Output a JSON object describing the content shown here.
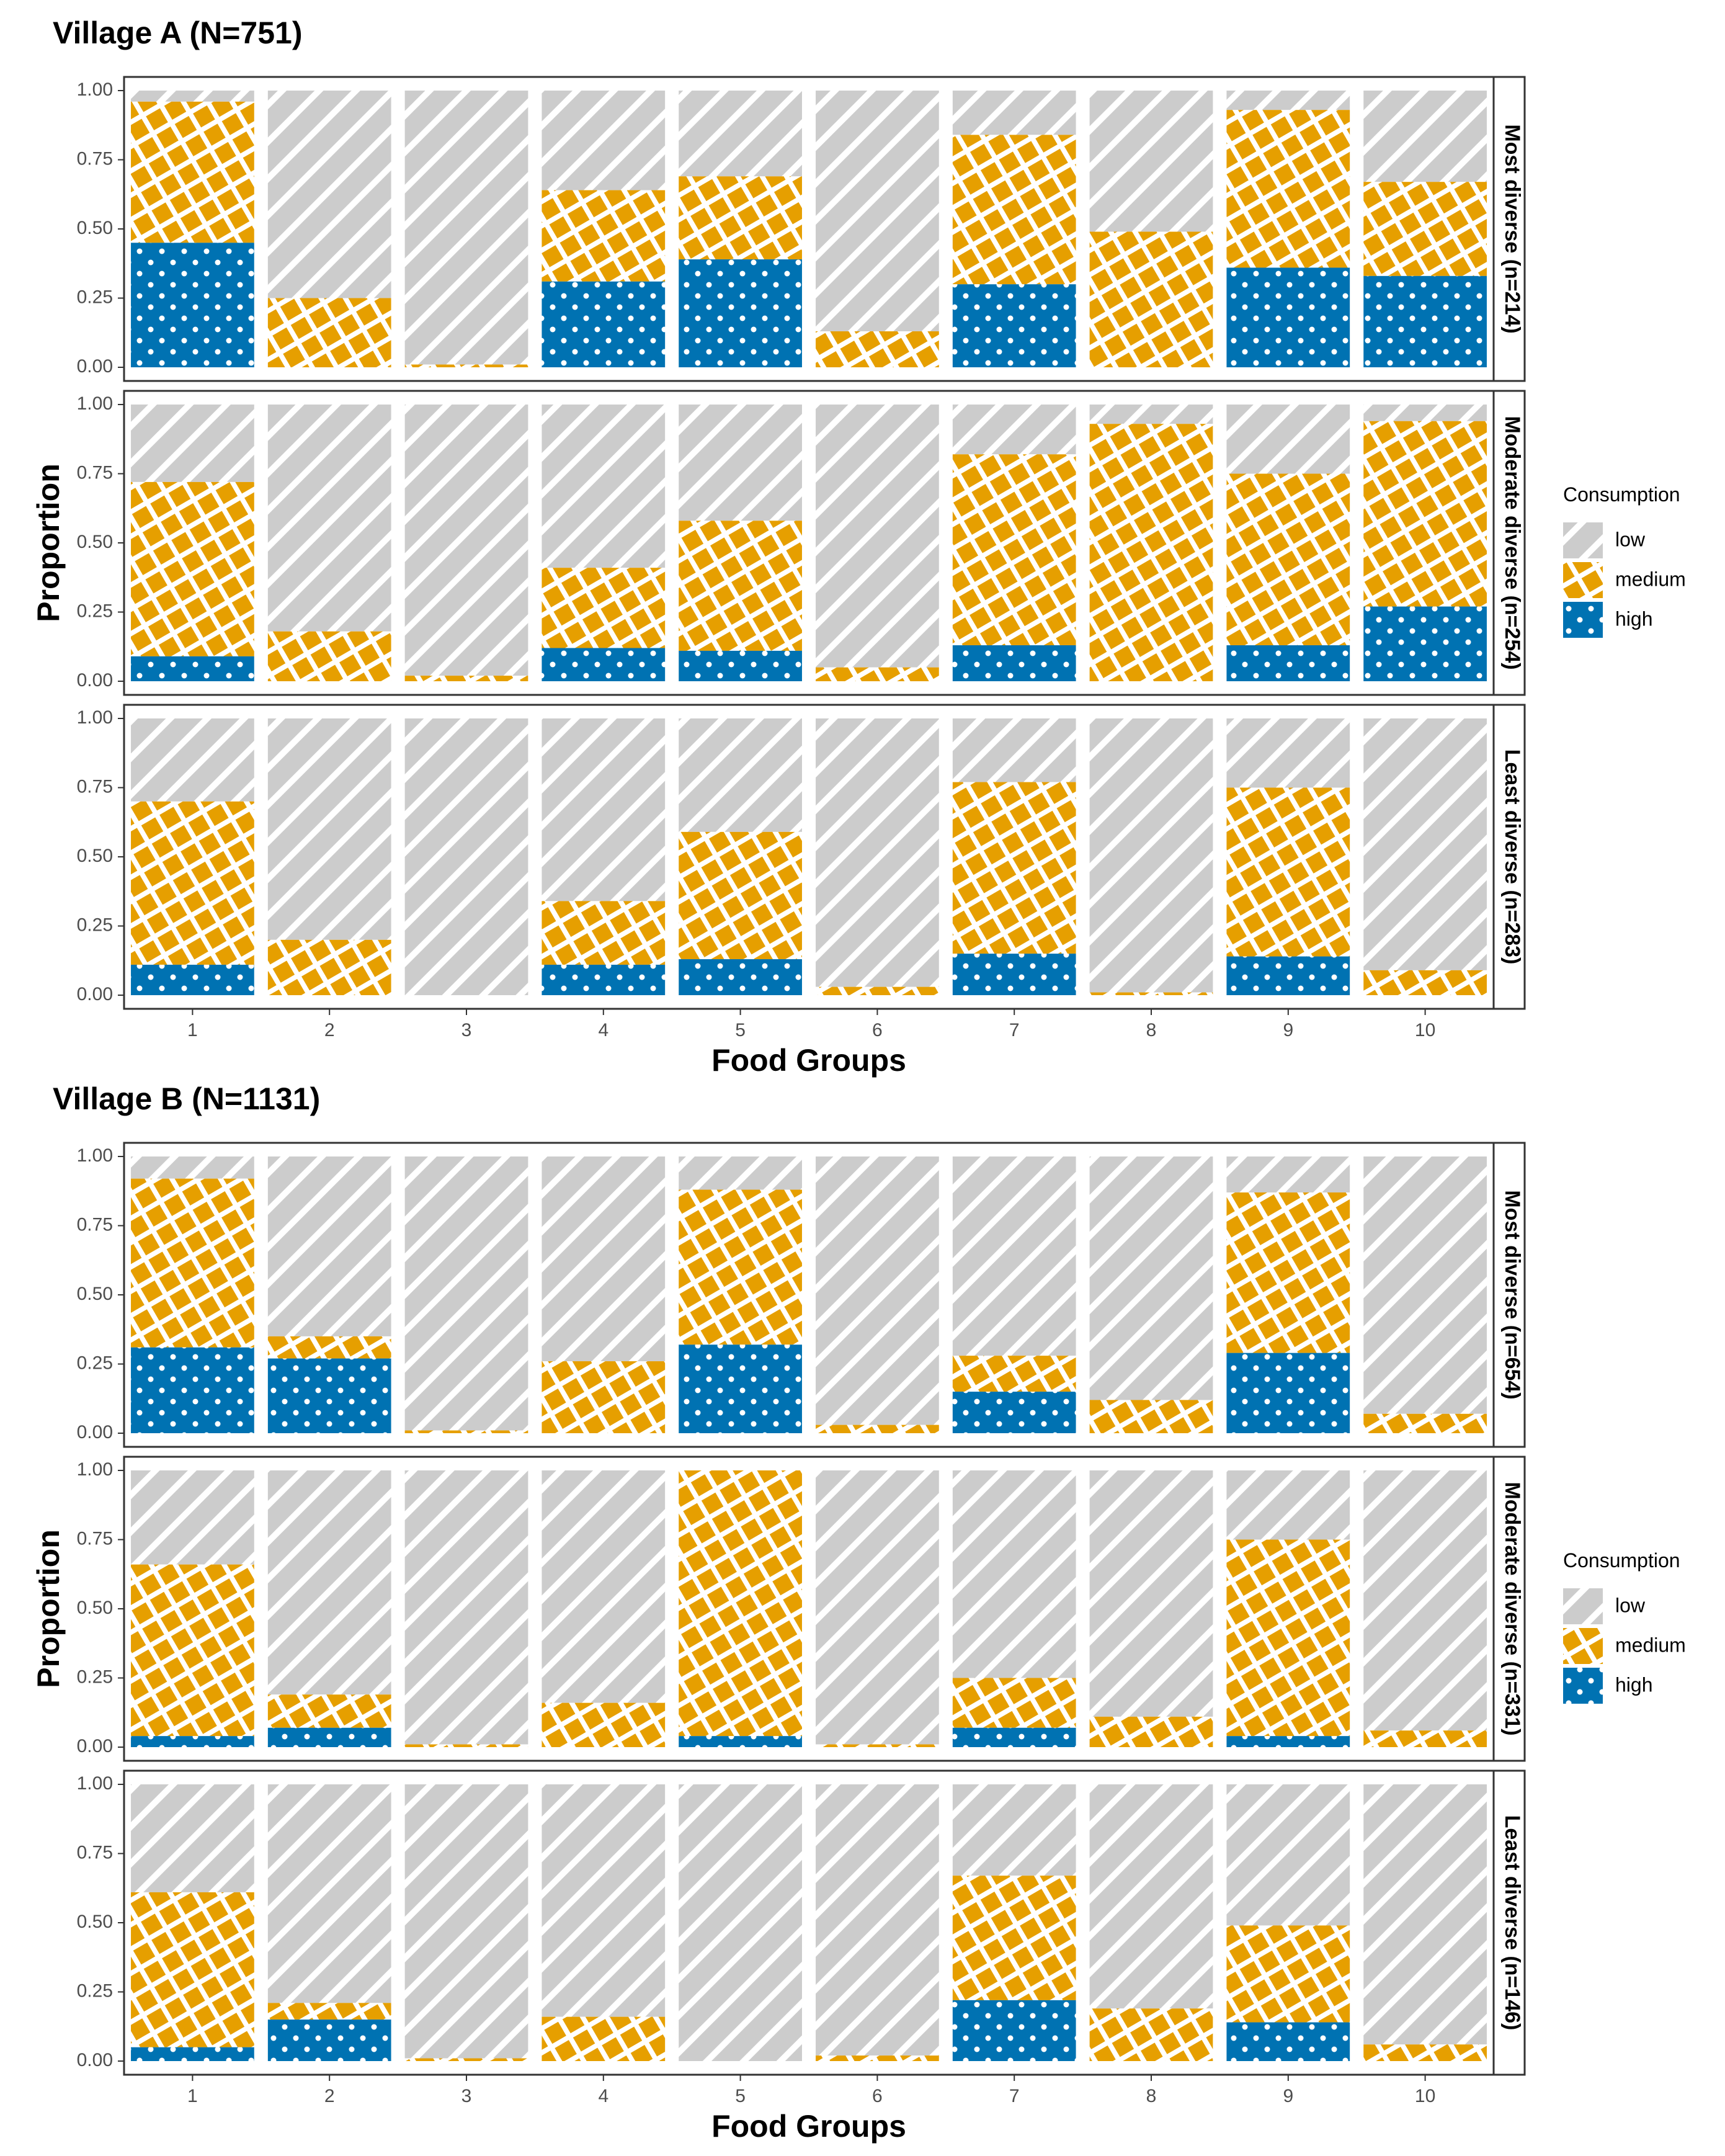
{
  "chart_data": [
    {
      "type": "bar",
      "stacked": true,
      "title": "Village A (N=751)",
      "xlabel": "Food Groups",
      "ylabel": "Proportion",
      "categories": [
        "1",
        "2",
        "3",
        "4",
        "5",
        "6",
        "7",
        "8",
        "9",
        "10"
      ],
      "ylim": [
        0,
        1
      ],
      "yticks": [
        "0.00",
        "0.25",
        "0.50",
        "0.75",
        "1.00"
      ],
      "legend": {
        "title": "Consumption",
        "position": "right",
        "items": [
          {
            "key": "low",
            "label": "low"
          },
          {
            "key": "medium",
            "label": "medium"
          },
          {
            "key": "high",
            "label": "high"
          }
        ]
      },
      "panels": [
        {
          "label": "Most diverse (n=214)",
          "high": [
            0.45,
            0.0,
            0.0,
            0.31,
            0.39,
            0.0,
            0.3,
            0.0,
            0.36,
            0.33
          ],
          "medium": [
            0.51,
            0.25,
            0.01,
            0.33,
            0.3,
            0.13,
            0.54,
            0.49,
            0.57,
            0.34
          ]
        },
        {
          "label": "Moderate diverse (n=254)",
          "high": [
            0.09,
            0.0,
            0.0,
            0.12,
            0.11,
            0.0,
            0.13,
            0.0,
            0.13,
            0.27
          ],
          "medium": [
            0.63,
            0.18,
            0.02,
            0.29,
            0.47,
            0.05,
            0.69,
            0.93,
            0.62,
            0.67
          ]
        },
        {
          "label": "Least diverse (n=283)",
          "high": [
            0.11,
            0.0,
            0.0,
            0.11,
            0.13,
            0.0,
            0.15,
            0.0,
            0.14,
            0.0
          ],
          "medium": [
            0.59,
            0.2,
            0.0,
            0.23,
            0.46,
            0.03,
            0.62,
            0.01,
            0.61,
            0.09
          ]
        }
      ]
    },
    {
      "type": "bar",
      "stacked": true,
      "title": "Village B (N=1131)",
      "xlabel": "Food Groups",
      "ylabel": "Proportion",
      "categories": [
        "1",
        "2",
        "3",
        "4",
        "5",
        "6",
        "7",
        "8",
        "9",
        "10"
      ],
      "ylim": [
        0,
        1
      ],
      "yticks": [
        "0.00",
        "0.25",
        "0.50",
        "0.75",
        "1.00"
      ],
      "legend": {
        "title": "Consumption",
        "position": "right",
        "items": [
          {
            "key": "low",
            "label": "low"
          },
          {
            "key": "medium",
            "label": "medium"
          },
          {
            "key": "high",
            "label": "high"
          }
        ]
      },
      "panels": [
        {
          "label": "Most diverse (n=654)",
          "high": [
            0.31,
            0.27,
            0.0,
            0.0,
            0.32,
            0.0,
            0.15,
            0.0,
            0.29,
            0.0
          ],
          "medium": [
            0.61,
            0.08,
            0.01,
            0.26,
            0.56,
            0.03,
            0.13,
            0.12,
            0.58,
            0.07
          ]
        },
        {
          "label": "Moderate diverse (n=331)",
          "high": [
            0.04,
            0.07,
            0.0,
            0.0,
            0.04,
            0.0,
            0.07,
            0.0,
            0.04,
            0.0
          ],
          "medium": [
            0.62,
            0.12,
            0.01,
            0.16,
            0.96,
            0.01,
            0.18,
            0.11,
            0.71,
            0.06
          ]
        },
        {
          "label": "Least diverse (n=146)",
          "high": [
            0.05,
            0.15,
            0.0,
            0.0,
            0.0,
            0.0,
            0.22,
            0.0,
            0.14,
            0.0
          ],
          "medium": [
            0.56,
            0.06,
            0.01,
            0.16,
            0.0,
            0.02,
            0.45,
            0.19,
            0.35,
            0.06
          ]
        }
      ]
    }
  ],
  "colors": {
    "low_fill": "#cccccc",
    "low_stripe": "#ffffff",
    "medium_fill": "#e69f00",
    "high_fill": "#0072b2",
    "panel_border": "#333333",
    "text": "#000000",
    "tick_text": "#4d4d4d"
  }
}
